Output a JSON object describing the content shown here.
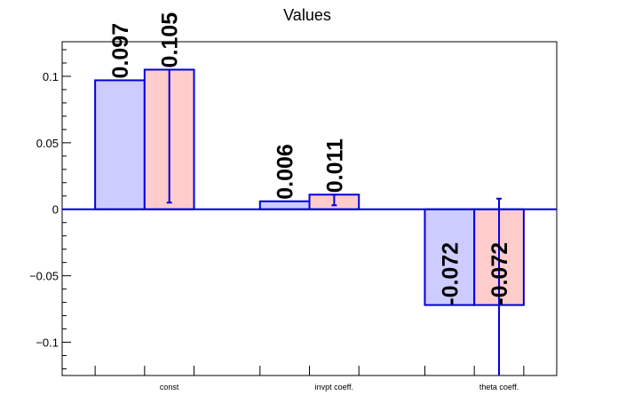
{
  "chart_data": {
    "type": "bar",
    "title": "Values",
    "xlabel": "",
    "ylabel": "",
    "ylim": [
      -0.125,
      0.126
    ],
    "yticks": [
      -0.1,
      -0.05,
      0,
      0.05,
      0.1
    ],
    "ytick_labels": [
      "−0.1",
      "−0.05",
      "0",
      "0.05",
      "0.1"
    ],
    "categories": [
      "const",
      "invpt coeff.",
      "theta coeff."
    ],
    "series": [
      {
        "fill": "#ccccff",
        "stroke": "#0000dd",
        "values": [
          0.097,
          0.006,
          -0.072
        ],
        "labels": [
          "0.097",
          "0.006",
          "-0.072"
        ]
      },
      {
        "fill": "#ffcccc",
        "stroke": "#0000dd",
        "values": [
          0.105,
          0.011,
          -0.072
        ],
        "labels": [
          "0.105",
          "0.011",
          "-0.072"
        ],
        "error_low": [
          0.005,
          0.003,
          -0.125
        ],
        "error_high": [
          0.105,
          0.011,
          0.008
        ]
      }
    ],
    "grid": false,
    "legend": "none"
  }
}
